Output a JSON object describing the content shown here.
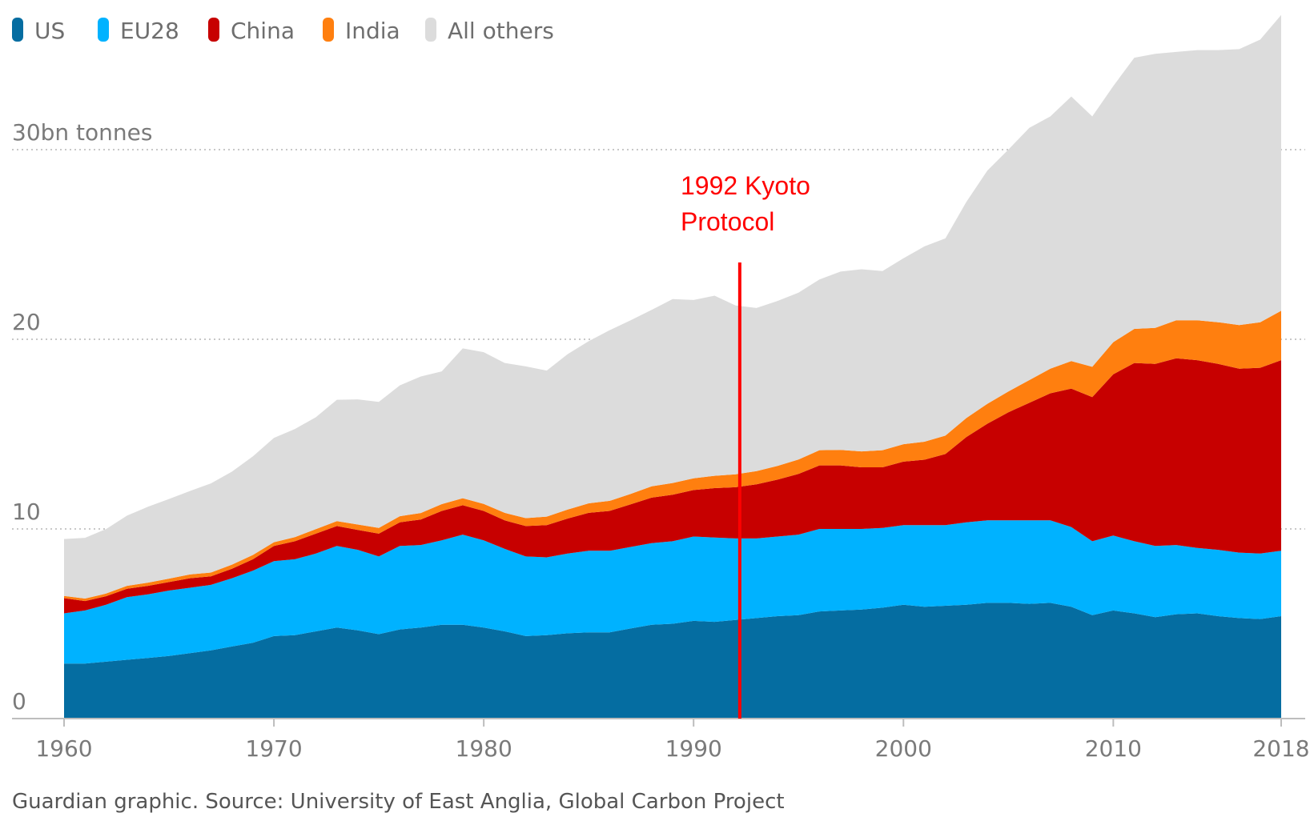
{
  "chart_data": {
    "type": "area",
    "stacked": true,
    "ylabel": "30bn tonnes",
    "ylim": [
      0,
      37
    ],
    "xlim": [
      1960,
      2018
    ],
    "y_ticks": [
      {
        "value": 0,
        "label": "0"
      },
      {
        "value": 10,
        "label": "10"
      },
      {
        "value": 20,
        "label": "20"
      },
      {
        "value": 30,
        "label": "30bn tonnes"
      }
    ],
    "x_ticks": [
      {
        "value": 1960,
        "label": "1960"
      },
      {
        "value": 1970,
        "label": "1970"
      },
      {
        "value": 1980,
        "label": "1980"
      },
      {
        "value": 1990,
        "label": "1990"
      },
      {
        "value": 2000,
        "label": "2000"
      },
      {
        "value": 2010,
        "label": "2010"
      },
      {
        "value": 2018,
        "label": "2018"
      }
    ],
    "grid": "horizontal dotted",
    "legend_position": "top-left",
    "x": [
      1960,
      1961,
      1962,
      1963,
      1964,
      1965,
      1966,
      1967,
      1968,
      1969,
      1970,
      1971,
      1972,
      1973,
      1974,
      1975,
      1976,
      1977,
      1978,
      1979,
      1980,
      1981,
      1982,
      1983,
      1984,
      1985,
      1986,
      1987,
      1988,
      1989,
      1990,
      1991,
      1992,
      1993,
      1994,
      1995,
      1996,
      1997,
      1998,
      1999,
      2000,
      2001,
      2002,
      2003,
      2004,
      2005,
      2006,
      2007,
      2008,
      2009,
      2010,
      2011,
      2012,
      2013,
      2014,
      2015,
      2016,
      2017,
      2018
    ],
    "series": [
      {
        "name": "US",
        "color": "#056da1",
        "values": [
          2.9,
          2.9,
          3.0,
          3.1,
          3.2,
          3.3,
          3.45,
          3.6,
          3.8,
          4.0,
          4.35,
          4.4,
          4.6,
          4.8,
          4.65,
          4.45,
          4.7,
          4.8,
          4.95,
          4.95,
          4.8,
          4.6,
          4.35,
          4.4,
          4.5,
          4.55,
          4.55,
          4.75,
          4.95,
          5.0,
          5.15,
          5.1,
          5.2,
          5.3,
          5.4,
          5.45,
          5.65,
          5.7,
          5.75,
          5.85,
          6.0,
          5.9,
          5.95,
          6.0,
          6.1,
          6.1,
          6.05,
          6.1,
          5.9,
          5.45,
          5.7,
          5.55,
          5.35,
          5.5,
          5.55,
          5.4,
          5.3,
          5.25,
          5.4
        ]
      },
      {
        "name": "EU28",
        "color": "#00b2ff",
        "values": [
          2.65,
          2.8,
          3.0,
          3.3,
          3.35,
          3.45,
          3.45,
          3.45,
          3.6,
          3.8,
          3.95,
          4.0,
          4.1,
          4.3,
          4.25,
          4.1,
          4.4,
          4.35,
          4.45,
          4.75,
          4.6,
          4.35,
          4.2,
          4.1,
          4.2,
          4.3,
          4.3,
          4.3,
          4.3,
          4.35,
          4.45,
          4.45,
          4.3,
          4.2,
          4.2,
          4.25,
          4.35,
          4.3,
          4.25,
          4.2,
          4.2,
          4.3,
          4.25,
          4.35,
          4.35,
          4.35,
          4.4,
          4.35,
          4.2,
          3.9,
          3.95,
          3.8,
          3.75,
          3.65,
          3.45,
          3.5,
          3.45,
          3.45,
          3.45
        ]
      },
      {
        "name": "China",
        "color": "#c70000",
        "values": [
          0.8,
          0.5,
          0.45,
          0.45,
          0.45,
          0.45,
          0.5,
          0.45,
          0.5,
          0.6,
          0.8,
          0.95,
          1.05,
          1.05,
          1.05,
          1.2,
          1.25,
          1.35,
          1.55,
          1.55,
          1.55,
          1.5,
          1.6,
          1.7,
          1.85,
          2.0,
          2.1,
          2.25,
          2.4,
          2.45,
          2.45,
          2.6,
          2.7,
          2.85,
          3.0,
          3.2,
          3.35,
          3.35,
          3.25,
          3.2,
          3.35,
          3.45,
          3.75,
          4.5,
          5.1,
          5.7,
          6.2,
          6.7,
          7.3,
          7.6,
          8.5,
          9.4,
          9.6,
          9.85,
          9.9,
          9.8,
          9.7,
          9.8,
          10.05
        ]
      },
      {
        "name": "India",
        "color": "#ff7f0f",
        "values": [
          0.12,
          0.13,
          0.14,
          0.15,
          0.17,
          0.18,
          0.2,
          0.2,
          0.22,
          0.23,
          0.2,
          0.22,
          0.24,
          0.26,
          0.28,
          0.3,
          0.32,
          0.34,
          0.36,
          0.37,
          0.37,
          0.4,
          0.42,
          0.45,
          0.47,
          0.5,
          0.53,
          0.55,
          0.6,
          0.62,
          0.62,
          0.65,
          0.68,
          0.7,
          0.72,
          0.76,
          0.8,
          0.82,
          0.84,
          0.9,
          0.92,
          0.95,
          0.97,
          1.0,
          1.05,
          1.1,
          1.2,
          1.3,
          1.45,
          1.6,
          1.7,
          1.8,
          1.9,
          2.0,
          2.1,
          2.2,
          2.3,
          2.4,
          2.6
        ]
      },
      {
        "name": "All others",
        "color": "#dcdcdc",
        "values": [
          3.0,
          3.2,
          3.4,
          3.7,
          4.0,
          4.2,
          4.4,
          4.7,
          4.9,
          5.2,
          5.5,
          5.7,
          5.9,
          6.4,
          6.6,
          6.65,
          6.9,
          7.2,
          7.0,
          7.9,
          8.0,
          7.9,
          8.0,
          7.7,
          8.2,
          8.55,
          9.0,
          9.15,
          9.3,
          9.7,
          9.4,
          9.5,
          8.9,
          8.6,
          8.7,
          8.8,
          9.0,
          9.4,
          9.6,
          9.45,
          9.8,
          10.3,
          10.4,
          11.4,
          12.3,
          12.75,
          13.3,
          13.3,
          13.95,
          13.2,
          13.5,
          14.3,
          14.45,
          14.15,
          14.25,
          14.35,
          14.55,
          14.9,
          15.6
        ]
      }
    ],
    "annotation": {
      "x": 1992.2,
      "label_lines": [
        "1992 Kyoto",
        "Protocol"
      ],
      "color": "#ff0000"
    }
  },
  "source": "Guardian graphic. Source: University of East Anglia, Global Carbon Project"
}
